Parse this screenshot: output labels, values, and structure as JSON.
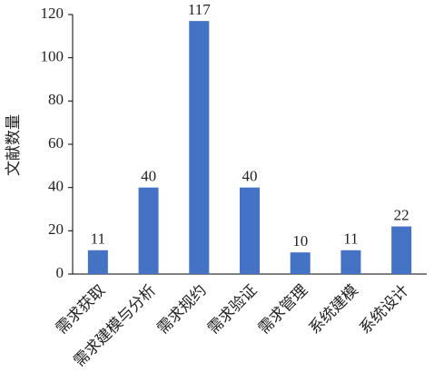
{
  "chart_data": {
    "type": "bar",
    "y_label": "文献数量",
    "categories": [
      "需求获取",
      "需求建模与分析",
      "需求规约",
      "需求验证",
      "需求管理",
      "系统建模",
      "系统设计"
    ],
    "values": [
      11,
      40,
      117,
      40,
      10,
      11,
      22
    ],
    "color": "#4472c4",
    "ylim": [
      0,
      120
    ],
    "yticks": [
      0,
      20,
      40,
      60,
      80,
      100,
      120
    ],
    "grid": false
  }
}
